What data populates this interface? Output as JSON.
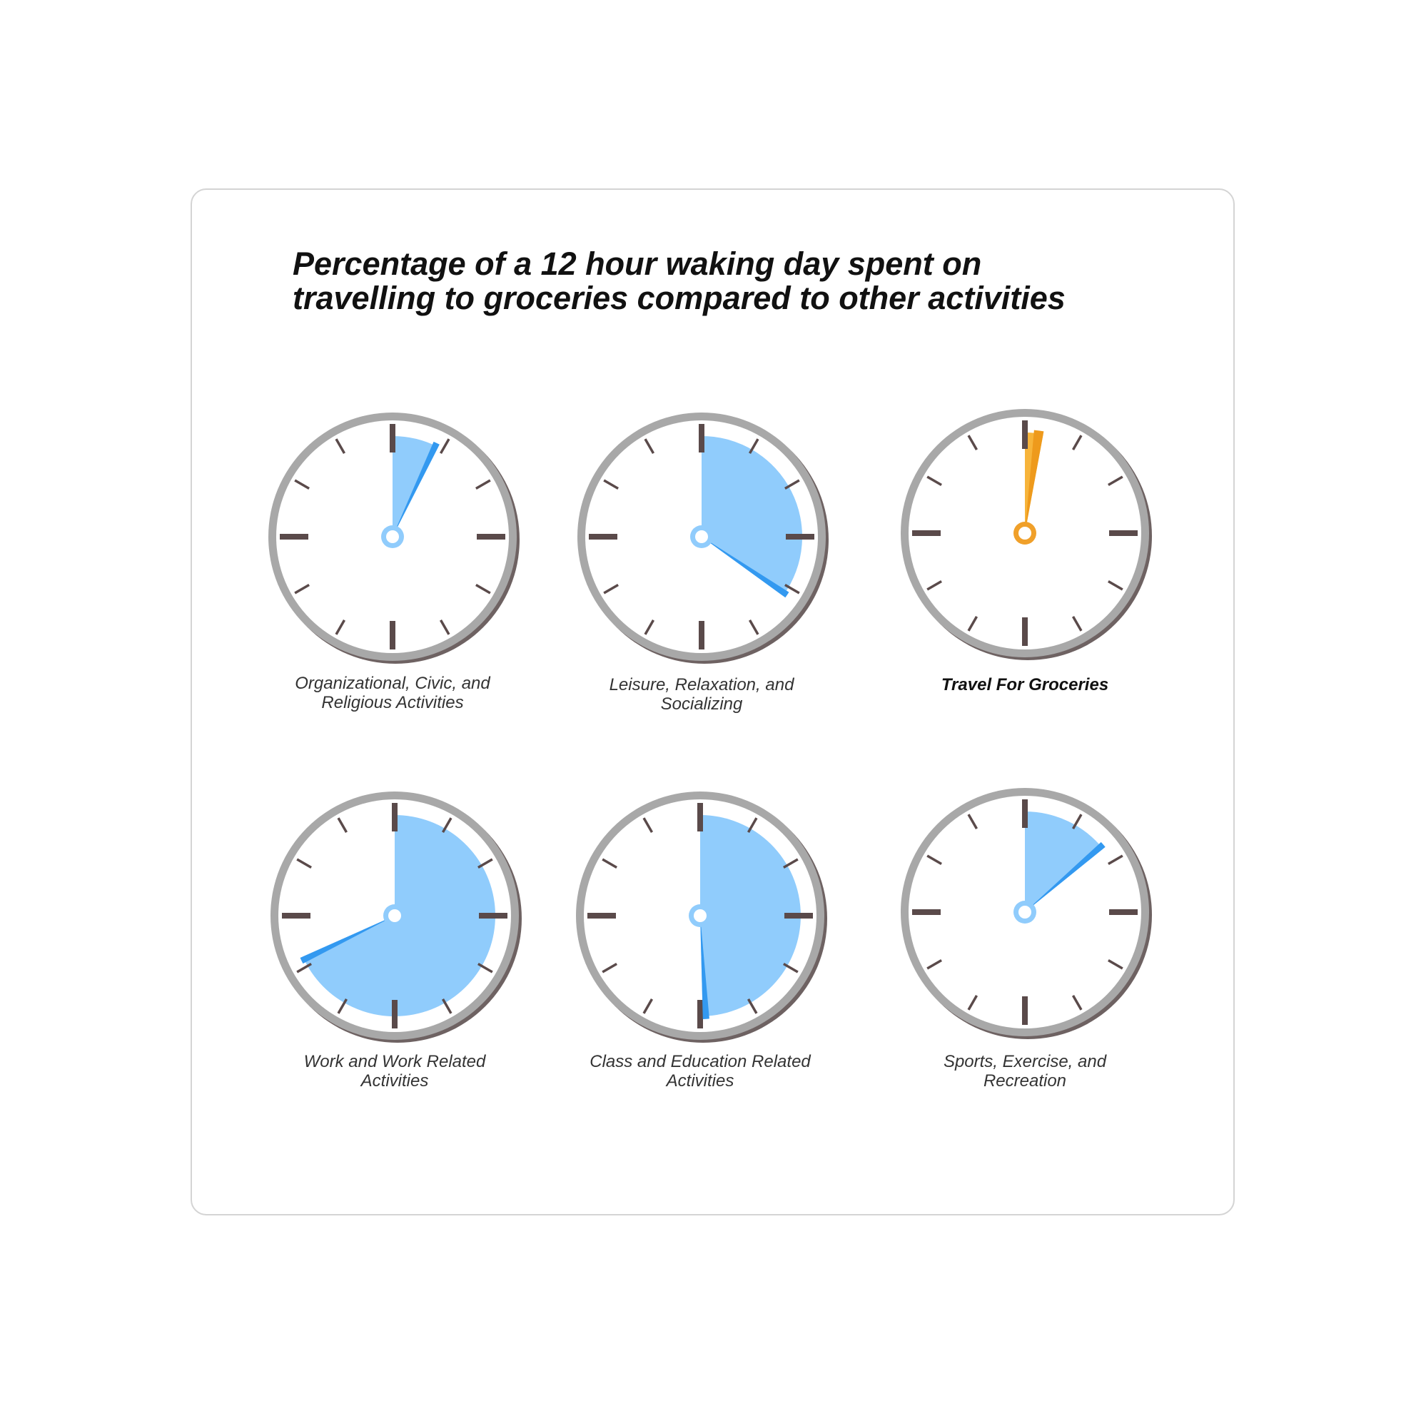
{
  "chart_data": {
    "type": "pie",
    "title_lines": [
      "Percentage of a 12 hour waking day spent on",
      "travelling to groceries compared to other activities"
    ],
    "unit": "hours of a 12 hour clock face",
    "clocks": [
      {
        "label_lines": [
          "Organizational, Civic, and",
          "Religious Activities"
        ],
        "hours": 0.9,
        "highlight": false
      },
      {
        "label_lines": [
          "Leisure, Relaxation, and",
          "Socializing"
        ],
        "hours": 4.2,
        "highlight": false
      },
      {
        "label_lines": [
          "Travel For Groceries"
        ],
        "hours": 0.35,
        "highlight": true
      },
      {
        "label_lines": [
          "Work and Work Related",
          "Activities"
        ],
        "hours": 8.2,
        "highlight": false
      },
      {
        "label_lines": [
          "Class and Education Related",
          "Activities"
        ],
        "hours": 5.95,
        "highlight": false
      },
      {
        "label_lines": [
          "Sports, Exercise, and",
          "Recreation"
        ],
        "hours": 1.7,
        "highlight": false
      }
    ],
    "colors": {
      "fill": "#90ccfc",
      "hand": "#3399f0",
      "hub": "#90ccfc",
      "highlight_fill": "#f7b43a",
      "highlight_hand": "#ee9a1c",
      "highlight_hub": "#f0a02a",
      "ticks": "#5a4a4a",
      "rim": "#a8a8a8",
      "rim_shadow": "#6e6262"
    }
  }
}
